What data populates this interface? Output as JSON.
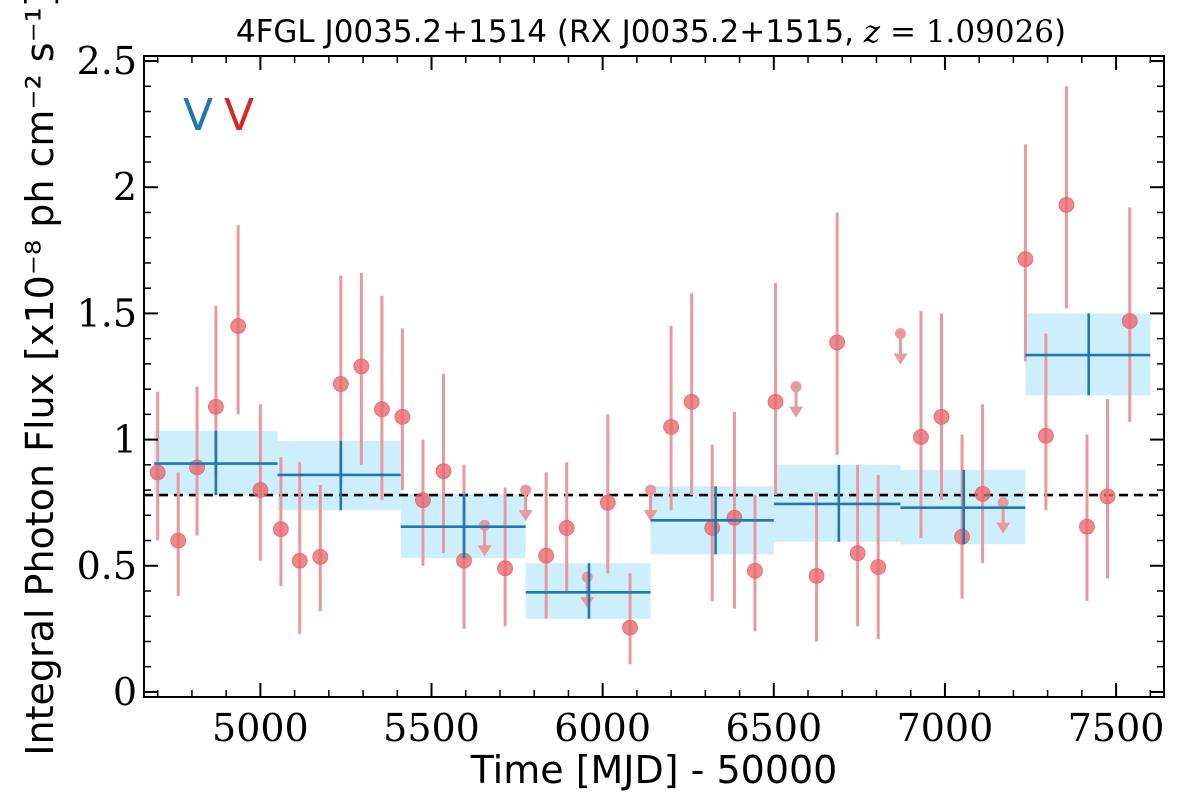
{
  "chart_data": {
    "type": "scatter",
    "title": {
      "main": "4FGL J0035.2+1514 (RX J0035.2+1515, ",
      "math_var": "z",
      "math_eq": " = ",
      "math_val": "1.09026",
      "close": ")"
    },
    "xlabel": "Time [MJD] - 50000",
    "ylabel": "Integral Photon Flux [x10⁻⁸ ph cm⁻² s⁻¹]",
    "xlim": [
      4660,
      7640
    ],
    "ylim": [
      -0.02,
      2.52
    ],
    "xticks": [
      5000,
      5500,
      6000,
      6500,
      7000,
      7500
    ],
    "xtick_labels": [
      "5000",
      "5500",
      "6000",
      "6500",
      "7000",
      "7500"
    ],
    "yticks": [
      0,
      0.5,
      1,
      1.5,
      2,
      2.5
    ],
    "ytick_labels": [
      "0",
      "0.5",
      "1",
      "1.5",
      "2",
      "2.5"
    ],
    "grid": false,
    "mean_flux": 0.78,
    "markers": [
      {
        "label": "V",
        "color": "#1f77b4"
      },
      {
        "label": "V",
        "color": "#d62728"
      }
    ],
    "colors": {
      "points": "#e8676c",
      "errorbars": "#e8999b",
      "bins": "#1f77b4",
      "bin_fill": "#cdeefc",
      "mean_line": "#000000"
    },
    "series": [
      {
        "type": "binned",
        "points": [
          {
            "x0": 4690,
            "x1": 5050,
            "xc": 4870,
            "y": 0.905,
            "ylo": 0.78,
            "yhi": 1.035
          },
          {
            "x0": 5050,
            "x1": 5410,
            "xc": 5235,
            "y": 0.86,
            "ylo": 0.72,
            "yhi": 0.995
          },
          {
            "x0": 5410,
            "x1": 5775,
            "xc": 5595,
            "y": 0.655,
            "ylo": 0.53,
            "yhi": 0.785
          },
          {
            "x0": 5775,
            "x1": 6140,
            "xc": 5960,
            "y": 0.395,
            "ylo": 0.29,
            "yhi": 0.51
          },
          {
            "x0": 6140,
            "x1": 6500,
            "xc": 6330,
            "y": 0.68,
            "ylo": 0.545,
            "yhi": 0.815
          },
          {
            "x0": 6500,
            "x1": 6870,
            "xc": 6690,
            "y": 0.745,
            "ylo": 0.595,
            "yhi": 0.9
          },
          {
            "x0": 6870,
            "x1": 7235,
            "xc": 7055,
            "y": 0.73,
            "ylo": 0.585,
            "yhi": 0.88
          },
          {
            "x0": 7235,
            "x1": 7600,
            "xc": 7420,
            "y": 1.335,
            "ylo": 1.175,
            "yhi": 1.5
          }
        ]
      },
      {
        "type": "monthly",
        "points": [
          {
            "x": 4700,
            "y": 0.87,
            "lo": 0.6,
            "hi": 1.19
          },
          {
            "x": 4760,
            "y": 0.6,
            "lo": 0.38,
            "hi": 0.87
          },
          {
            "x": 4815,
            "y": 0.89,
            "lo": 0.62,
            "hi": 1.21
          },
          {
            "x": 4870,
            "y": 1.13,
            "lo": 0.85,
            "hi": 1.53
          },
          {
            "x": 4935,
            "y": 1.45,
            "lo": 1.1,
            "hi": 1.85
          },
          {
            "x": 5000,
            "y": 0.8,
            "lo": 0.52,
            "hi": 1.14
          },
          {
            "x": 5060,
            "y": 0.645,
            "lo": 0.42,
            "hi": 0.93
          },
          {
            "x": 5115,
            "y": 0.52,
            "lo": 0.23,
            "hi": 0.91
          },
          {
            "x": 5175,
            "y": 0.535,
            "lo": 0.32,
            "hi": 0.82
          },
          {
            "x": 5235,
            "y": 1.22,
            "lo": 0.82,
            "hi": 1.65
          },
          {
            "x": 5295,
            "y": 1.29,
            "lo": 0.9,
            "hi": 1.66
          },
          {
            "x": 5355,
            "y": 1.12,
            "lo": 0.76,
            "hi": 1.57
          },
          {
            "x": 5415,
            "y": 1.09,
            "lo": 0.8,
            "hi": 1.44
          },
          {
            "x": 5475,
            "y": 0.76,
            "lo": 0.5,
            "hi": 1.0
          },
          {
            "x": 5535,
            "y": 0.875,
            "lo": 0.55,
            "hi": 1.26
          },
          {
            "x": 5595,
            "y": 0.52,
            "lo": 0.25,
            "hi": 0.9
          },
          {
            "x": 5655,
            "y": 0.66,
            "upper_limit": true
          },
          {
            "x": 5715,
            "y": 0.49,
            "lo": 0.26,
            "hi": 0.81
          },
          {
            "x": 5775,
            "y": 0.8,
            "upper_limit": true
          },
          {
            "x": 5835,
            "y": 0.54,
            "lo": 0.29,
            "hi": 0.87
          },
          {
            "x": 5895,
            "y": 0.65,
            "lo": 0.39,
            "hi": 0.91
          },
          {
            "x": 5955,
            "y": 0.455,
            "upper_limit": true
          },
          {
            "x": 6015,
            "y": 0.75,
            "lo": 0.47,
            "hi": 1.1
          },
          {
            "x": 6080,
            "y": 0.255,
            "lo": 0.11,
            "hi": 0.47
          },
          {
            "x": 6140,
            "y": 0.8,
            "upper_limit": true
          },
          {
            "x": 6200,
            "y": 1.05,
            "lo": 0.72,
            "hi": 1.45
          },
          {
            "x": 6260,
            "y": 1.15,
            "lo": 0.78,
            "hi": 1.58
          },
          {
            "x": 6320,
            "y": 0.65,
            "lo": 0.36,
            "hi": 0.98
          },
          {
            "x": 6385,
            "y": 0.69,
            "lo": 0.33,
            "hi": 1.11
          },
          {
            "x": 6445,
            "y": 0.48,
            "lo": 0.24,
            "hi": 0.78
          },
          {
            "x": 6505,
            "y": 1.15,
            "lo": 0.78,
            "hi": 1.62
          },
          {
            "x": 6565,
            "y": 1.21,
            "upper_limit": true
          },
          {
            "x": 6625,
            "y": 0.46,
            "lo": 0.2,
            "hi": 0.79
          },
          {
            "x": 6685,
            "y": 1.385,
            "lo": 0.94,
            "hi": 1.9
          },
          {
            "x": 6745,
            "y": 0.55,
            "lo": 0.26,
            "hi": 0.9
          },
          {
            "x": 6805,
            "y": 0.495,
            "lo": 0.21,
            "hi": 0.86
          },
          {
            "x": 6870,
            "y": 1.42,
            "upper_limit": true
          },
          {
            "x": 6930,
            "y": 1.01,
            "lo": 0.61,
            "hi": 1.51
          },
          {
            "x": 6990,
            "y": 1.09,
            "lo": 0.76,
            "hi": 1.5
          },
          {
            "x": 7050,
            "y": 0.615,
            "lo": 0.37,
            "hi": 1.02
          },
          {
            "x": 7110,
            "y": 0.785,
            "lo": 0.51,
            "hi": 1.14
          },
          {
            "x": 7170,
            "y": 0.75,
            "upper_limit": true
          },
          {
            "x": 7235,
            "y": 1.715,
            "lo": 1.31,
            "hi": 2.17
          },
          {
            "x": 7295,
            "y": 1.015,
            "lo": 0.72,
            "hi": 1.42
          },
          {
            "x": 7355,
            "y": 1.93,
            "lo": 1.52,
            "hi": 2.4
          },
          {
            "x": 7415,
            "y": 0.655,
            "lo": 0.36,
            "hi": 1.02
          },
          {
            "x": 7475,
            "y": 0.775,
            "lo": 0.45,
            "hi": 1.16
          },
          {
            "x": 7540,
            "y": 1.47,
            "lo": 1.07,
            "hi": 1.92
          }
        ]
      }
    ]
  }
}
